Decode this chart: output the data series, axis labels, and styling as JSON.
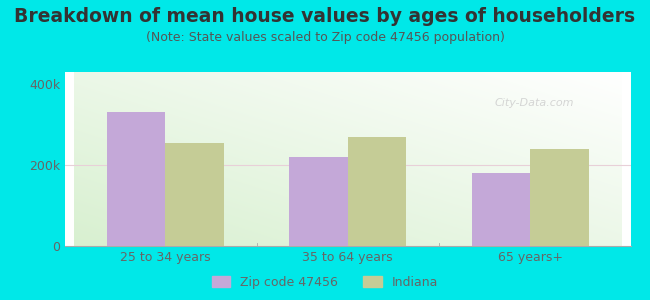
{
  "title": "Breakdown of mean house values by ages of householders",
  "subtitle": "(Note: State values scaled to Zip code 47456 population)",
  "categories": [
    "25 to 34 years",
    "35 to 64 years",
    "65 years+"
  ],
  "zip_values": [
    330000,
    220000,
    180000
  ],
  "indiana_values": [
    255000,
    270000,
    240000
  ],
  "zip_color": "#c4a8d8",
  "indiana_color": "#c5cc96",
  "background_color": "#00e8e8",
  "plot_bg_left": "#d8f0d0",
  "plot_bg_right": "#f5faf5",
  "ylim": [
    0,
    430000
  ],
  "ytick_vals": [
    0,
    200000,
    400000
  ],
  "ytick_labels": [
    "0",
    "200k",
    "400k"
  ],
  "legend_zip_label": "Zip code 47456",
  "legend_indiana_label": "Indiana",
  "bar_width": 0.32,
  "title_fontsize": 13.5,
  "subtitle_fontsize": 9,
  "axis_fontsize": 9,
  "legend_fontsize": 9,
  "title_color": "#333333",
  "subtitle_color": "#555555",
  "tick_color": "#666666",
  "gridline_color": "#dddddd",
  "watermark_text": "City-Data.com",
  "watermark_color": "#cccccc"
}
